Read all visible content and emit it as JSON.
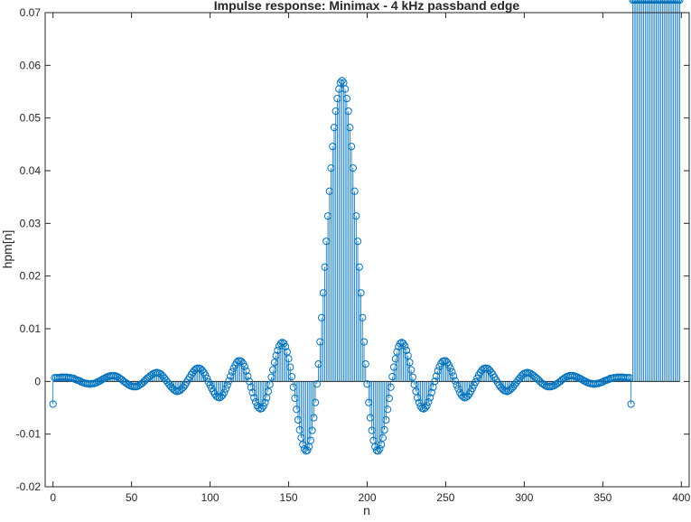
{
  "chart_data": {
    "type": "stem",
    "title": "Impulse response: Minimax - 4 kHz passband edge",
    "xlabel": "n",
    "ylabel": "hpm[n]",
    "xlim": [
      -5,
      405
    ],
    "ylim": [
      -0.02,
      0.07
    ],
    "xticks": [
      0,
      50,
      100,
      150,
      200,
      250,
      300,
      350,
      400
    ],
    "yticks": [
      -0.02,
      -0.01,
      0,
      0.01,
      0.02,
      0.03,
      0.04,
      0.05,
      0.06,
      0.07
    ],
    "xtick_labels": [
      "0",
      "50",
      "100",
      "150",
      "200",
      "250",
      "300",
      "350",
      "400"
    ],
    "ytick_labels": [
      "-0.02",
      "-0.01",
      "0",
      "0.01",
      "0.02",
      "0.03",
      "0.04",
      "0.05",
      "0.06",
      "0.07"
    ],
    "grid": false,
    "color": "#0072BD",
    "n": [
      0,
      1,
      2,
      3,
      4,
      5,
      6,
      7,
      8,
      9,
      10,
      11,
      12,
      13,
      14,
      15,
      16,
      17,
      18,
      19,
      20,
      21,
      22,
      23,
      24,
      25,
      26,
      27,
      28,
      29,
      30,
      31,
      32,
      33,
      34,
      35,
      36,
      37,
      38,
      39,
      40,
      41,
      42,
      43,
      44,
      45,
      46,
      47,
      48,
      49,
      50,
      51,
      52,
      53,
      54,
      55,
      56,
      57,
      58,
      59,
      60,
      61,
      62,
      63,
      64,
      65,
      66,
      67,
      68,
      69,
      70,
      71,
      72,
      73,
      74,
      75,
      76,
      77,
      78,
      79,
      80,
      81,
      82,
      83,
      84,
      85,
      86,
      87,
      88,
      89,
      90,
      91,
      92,
      93,
      94,
      95,
      96,
      97,
      98,
      99,
      100,
      101,
      102,
      103,
      104,
      105,
      106,
      107,
      108,
      109,
      110,
      111,
      112,
      113,
      114,
      115,
      116,
      117,
      118,
      119,
      120,
      121,
      122,
      123,
      124,
      125,
      126,
      127,
      128,
      129,
      130,
      131,
      132,
      133,
      134,
      135,
      136,
      137,
      138,
      139,
      140,
      141,
      142,
      143,
      144,
      145,
      146,
      147,
      148,
      149,
      150,
      151,
      152,
      153,
      154,
      155,
      156,
      157,
      158,
      159,
      160,
      161,
      162,
      163,
      164,
      165,
      166,
      167,
      168,
      169,
      170,
      171,
      172,
      173,
      174,
      175,
      176,
      177,
      178,
      179,
      180,
      181,
      182,
      183,
      184,
      185,
      186,
      187,
      188,
      189,
      190,
      191,
      192,
      193,
      194,
      195,
      196,
      197,
      198,
      199,
      200,
      201,
      202,
      203,
      204,
      205,
      206,
      207,
      208,
      209,
      210,
      211,
      212,
      213,
      214,
      215,
      216,
      217,
      218,
      219,
      220,
      221,
      222,
      223,
      224,
      225,
      226,
      227,
      228,
      229,
      230,
      231,
      232,
      233,
      234,
      235,
      236,
      237,
      238,
      239,
      240,
      241,
      242,
      243,
      244,
      245,
      246,
      247,
      248,
      249,
      250,
      251,
      252,
      253,
      254,
      255,
      256,
      257,
      258,
      259,
      260,
      261,
      262,
      263,
      264,
      265,
      266,
      267,
      268,
      269,
      270,
      271,
      272,
      273,
      274,
      275,
      276,
      277,
      278,
      279,
      280,
      281,
      282,
      283,
      284,
      285,
      286,
      287,
      288,
      289,
      290,
      291,
      292,
      293,
      294,
      295,
      296,
      297,
      298,
      299,
      300,
      301,
      302,
      303,
      304,
      305,
      306,
      307,
      308,
      309,
      310,
      311,
      312,
      313,
      314,
      315,
      316,
      317,
      318,
      319,
      320,
      321,
      322,
      323,
      324,
      325,
      326,
      327,
      328,
      329,
      330,
      331,
      332,
      333,
      334,
      335,
      336,
      337,
      338,
      339,
      340,
      341,
      342,
      343,
      344,
      345,
      346,
      347,
      348,
      349,
      350,
      351,
      352,
      353,
      354,
      355,
      356,
      357,
      358,
      359,
      360,
      361,
      362,
      363,
      364,
      365,
      366,
      367,
      368,
      369,
      370,
      371,
      372,
      373,
      374,
      375,
      376,
      377,
      378,
      379,
      380,
      381,
      382,
      383,
      384,
      385,
      386,
      387,
      388,
      389,
      390,
      391,
      392,
      393,
      394,
      395,
      396,
      397,
      398,
      399
    ],
    "values": [
      -0.0043,
      0.0007,
      0.0007,
      0.0007,
      0.0007,
      0.0008,
      0.0008,
      0.0008,
      0.0008,
      0.0008,
      0.0007,
      0.0007,
      0.0006,
      0.0006,
      0.0004,
      0.0003,
      0.0002,
      0.0001,
      -0.0001,
      -0.0002,
      -0.0003,
      -0.0004,
      -0.0004,
      -0.0005,
      -0.0005,
      -0.0004,
      -0.0004,
      -0.0003,
      -0.0002,
      0.0,
      0.0001,
      0.0003,
      0.0005,
      0.0006,
      0.0008,
      0.0009,
      0.001,
      0.0011,
      0.0011,
      0.0011,
      0.001,
      0.0009,
      0.0007,
      0.0005,
      0.0003,
      0.0,
      -0.0002,
      -0.0004,
      -0.0006,
      -0.0008,
      -0.0009,
      -0.001,
      -0.001,
      -0.001,
      -0.0009,
      -0.0007,
      -0.0005,
      -0.0003,
      0.0,
      0.0003,
      0.0006,
      0.0008,
      0.0011,
      0.0013,
      0.0015,
      0.0016,
      0.0017,
      0.0016,
      0.0015,
      0.0013,
      0.001,
      0.0006,
      0.0002,
      -0.0002,
      -0.0006,
      -0.001,
      -0.0013,
      -0.0016,
      -0.0018,
      -0.0019,
      -0.0018,
      -0.0017,
      -0.0014,
      -0.0011,
      -0.0007,
      -0.0002,
      0.0003,
      0.0008,
      0.0013,
      0.0017,
      0.0021,
      0.0024,
      0.0025,
      0.0025,
      0.0024,
      0.0021,
      0.0017,
      0.0012,
      0.0006,
      -0.0001,
      -0.0007,
      -0.0013,
      -0.0019,
      -0.0024,
      -0.0028,
      -0.003,
      -0.0031,
      -0.0029,
      -0.0026,
      -0.0021,
      -0.0014,
      -0.0007,
      0.0001,
      0.001,
      0.0018,
      0.0025,
      0.0031,
      0.0036,
      0.0039,
      0.0039,
      0.0038,
      0.0034,
      0.0028,
      0.002,
      0.001,
      0.0,
      -0.0011,
      -0.0021,
      -0.0031,
      -0.0039,
      -0.0046,
      -0.005,
      -0.0052,
      -0.0051,
      -0.0047,
      -0.004,
      -0.0031,
      -0.0019,
      -0.0006,
      0.0008,
      0.0022,
      0.0036,
      0.0049,
      0.0059,
      0.0067,
      0.0072,
      0.0074,
      0.0072,
      0.0066,
      0.0056,
      0.0043,
      0.0027,
      0.0009,
      -0.0011,
      -0.0032,
      -0.0053,
      -0.0073,
      -0.0092,
      -0.0107,
      -0.012,
      -0.0128,
      -0.0132,
      -0.0131,
      -0.0124,
      -0.0112,
      -0.0093,
      -0.0069,
      -0.004,
      -0.0005,
      0.0033,
      0.0075,
      0.0121,
      0.0168,
      0.0217,
      0.0266,
      0.0314,
      0.0361,
      0.0405,
      0.0446,
      0.0482,
      0.0513,
      0.0537,
      0.0555,
      0.0567,
      0.0571,
      0.0567,
      0.0555,
      0.0537,
      0.0513,
      0.0482,
      0.0446,
      0.0405,
      0.0361,
      0.0314,
      0.0266,
      0.0217,
      0.0168,
      0.0121,
      0.0075,
      0.0033,
      -0.0005,
      -0.004,
      -0.0069,
      -0.0093,
      -0.0112,
      -0.0124,
      -0.0131,
      -0.0132,
      -0.0128,
      -0.012,
      -0.0107,
      -0.0092,
      -0.0073,
      -0.0053,
      -0.0032,
      -0.0011,
      0.0009,
      0.0027,
      0.0043,
      0.0056,
      0.0066,
      0.0072,
      0.0074,
      0.0072,
      0.0067,
      0.0059,
      0.0049,
      0.0036,
      0.0022,
      0.0008,
      -0.0006,
      -0.0019,
      -0.0031,
      -0.004,
      -0.0047,
      -0.0051,
      -0.0052,
      -0.005,
      -0.0046,
      -0.0039,
      -0.0031,
      -0.0021,
      -0.0011,
      0.0,
      0.001,
      0.002,
      0.0028,
      0.0034,
      0.0038,
      0.0039,
      0.0039,
      0.0036,
      0.0031,
      0.0025,
      0.0018,
      0.001,
      0.0001,
      -0.0007,
      -0.0014,
      -0.0021,
      -0.0026,
      -0.0029,
      -0.0031,
      -0.003,
      -0.0028,
      -0.0024,
      -0.0019,
      -0.0013,
      -0.0007,
      -0.0001,
      0.0006,
      0.0012,
      0.0017,
      0.0021,
      0.0024,
      0.0025,
      0.0025,
      0.0024,
      0.0021,
      0.0017,
      0.0013,
      0.0008,
      0.0003,
      -0.0002,
      -0.0007,
      -0.0011,
      -0.0014,
      -0.0017,
      -0.0018,
      -0.0019,
      -0.0018,
      -0.0016,
      -0.0013,
      -0.001,
      -0.0006,
      -0.0002,
      0.0002,
      0.0006,
      0.001,
      0.0013,
      0.0015,
      0.0016,
      0.0017,
      0.0016,
      0.0015,
      0.0013,
      0.0011,
      0.0008,
      0.0006,
      0.0003,
      0.0,
      -0.0003,
      -0.0005,
      -0.0007,
      -0.0009,
      -0.001,
      -0.001,
      -0.001,
      -0.0009,
      -0.0008,
      -0.0006,
      -0.0004,
      -0.0002,
      0.0,
      0.0003,
      0.0005,
      0.0007,
      0.0009,
      0.001,
      0.0011,
      0.0011,
      0.0011,
      0.001,
      0.0009,
      0.0008,
      0.0006,
      0.0005,
      0.0003,
      0.0001,
      0.0,
      -0.0002,
      -0.0003,
      -0.0004,
      -0.0004,
      -0.0005,
      -0.0005,
      -0.0004,
      -0.0004,
      -0.0003,
      -0.0002,
      -0.0001,
      0.0001,
      0.0002,
      0.0003,
      0.0004,
      0.0006,
      0.0006,
      0.0007,
      0.0007,
      0.0008,
      0.0008,
      0.0008,
      0.0008,
      0.0008,
      0.0007,
      0.0007,
      0.0007,
      0.0007,
      -0.0043
    ]
  }
}
